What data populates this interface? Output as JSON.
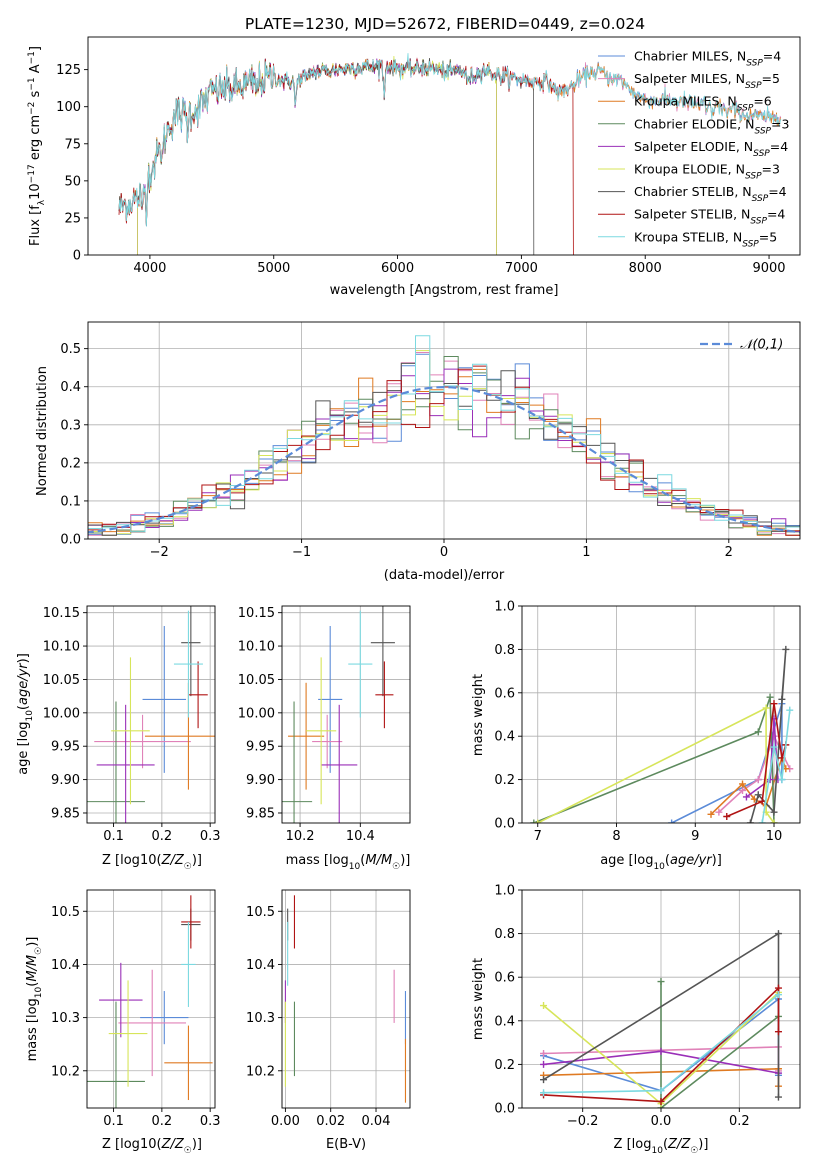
{
  "colors": {
    "Chabrier MILES": "#5b8bd8",
    "Salpeter MILES": "#e082b8",
    "Kroupa MILES": "#df7a22",
    "Chabrier ELODIE": "#5d8a5e",
    "Salpeter ELODIE": "#9a2fb8",
    "Kroupa ELODIE": "#d7e55a",
    "Chabrier STELIB": "#555555",
    "Salpeter STELIB": "#b01414",
    "Kroupa STELIB": "#7cd9e0"
  },
  "chart_data": [
    {
      "id": "spectrum",
      "type": "line",
      "title": "PLATE=1230, MJD=52672, FIBERID=0449, z=0.024",
      "xlabel": "wavelength [Angstrom, rest frame]",
      "ylabel": "Flux [fλ10⁻¹⁷ erg cm⁻² s⁻¹ A⁻¹]",
      "xlim": [
        3500,
        9250
      ],
      "ylim": [
        0,
        147
      ],
      "xticks": [
        4000,
        5000,
        6000,
        7000,
        8000,
        9000
      ],
      "yticks": [
        0,
        25,
        50,
        75,
        100,
        125
      ],
      "legend_position": "upper right",
      "continuum": {
        "x": [
          3750,
          3900,
          4000,
          4100,
          4200,
          4300,
          4400,
          4500,
          4600,
          4700,
          4800,
          4900,
          5000,
          5100,
          5200,
          5300,
          5400,
          5500,
          5600,
          5700,
          5800,
          5900,
          6000,
          6100,
          6200,
          6300,
          6400,
          6500,
          6600,
          6700,
          6800,
          6900,
          7000,
          7100,
          7200,
          7300,
          7400,
          7500,
          7600,
          7700,
          7800,
          7900,
          8000,
          8200,
          8400,
          8600,
          8800,
          9000,
          9100
        ],
        "y": [
          32,
          38,
          55,
          75,
          95,
          95,
          100,
          110,
          112,
          113,
          115,
          118,
          120,
          117,
          118,
          123,
          124,
          125,
          126,
          127,
          127,
          128,
          126,
          125,
          127,
          126,
          123,
          125,
          120,
          125,
          121,
          120,
          118,
          117,
          117,
          110,
          113,
          120,
          126,
          120,
          118,
          110,
          105,
          104,
          102,
          100,
          95,
          92,
          94
        ]
      },
      "absorption_lines": [
        {
          "wl": 3934,
          "depth": 18
        },
        {
          "wl": 3969,
          "depth": 16
        },
        {
          "wl": 4102,
          "depth": 10
        },
        {
          "wl": 4304,
          "depth": 10
        },
        {
          "wl": 4861,
          "depth": 8
        },
        {
          "wl": 5175,
          "depth": 18
        },
        {
          "wl": 5270,
          "depth": 6
        },
        {
          "wl": 5893,
          "depth": 22
        },
        {
          "wl": 6563,
          "depth": 6
        },
        {
          "wl": 7600,
          "depth": 8
        },
        {
          "wl": 8498,
          "depth": 6
        },
        {
          "wl": 8542,
          "depth": 8
        },
        {
          "wl": 8662,
          "depth": 6
        }
      ],
      "series": [
        {
          "name": "Chabrier MILES, N_SSP=4",
          "model": "Chabrier MILES",
          "range": [
            3750,
            9100
          ]
        },
        {
          "name": "Salpeter MILES, N_SSP=5",
          "model": "Salpeter MILES",
          "range": [
            3750,
            9100
          ]
        },
        {
          "name": "Kroupa MILES, N_SSP=6",
          "model": "Kroupa MILES",
          "range": [
            3750,
            9100
          ]
        },
        {
          "name": "Chabrier ELODIE, N_SSP=3",
          "model": "Chabrier ELODIE",
          "range": [
            3900,
            6800
          ]
        },
        {
          "name": "Salpeter ELODIE, N_SSP=4",
          "model": "Salpeter ELODIE",
          "range": [
            3900,
            6800
          ]
        },
        {
          "name": "Kroupa ELODIE, N_SSP=3",
          "model": "Kroupa ELODIE",
          "range": [
            3900,
            6800
          ]
        },
        {
          "name": "Chabrier STELIB, N_SSP=4",
          "model": "Chabrier STELIB",
          "range": [
            3750,
            7100
          ]
        },
        {
          "name": "Salpeter STELIB, N_SSP=4",
          "model": "Salpeter STELIB",
          "range": [
            3750,
            7420
          ]
        },
        {
          "name": "Kroupa STELIB, N_SSP=5",
          "model": "Kroupa STELIB",
          "range": [
            3750,
            9100
          ]
        }
      ]
    },
    {
      "id": "residuals",
      "type": "histogram",
      "xlabel": "(data-model)/error",
      "ylabel": "Normed distribution",
      "xlim": [
        -2.5,
        2.5
      ],
      "ylim": [
        0,
        0.57
      ],
      "xticks": [
        -2,
        -1,
        0,
        1,
        2
      ],
      "yticks": [
        0.0,
        0.1,
        0.2,
        0.3,
        0.4,
        0.5
      ],
      "grid": true,
      "bin_width": 0.1,
      "reference": {
        "name": "𝒩(0,1)",
        "type": "gaussian",
        "mean": 0,
        "sigma": 1
      },
      "legend_position": "upper right"
    },
    {
      "id": "age_vs_Z",
      "type": "errorbar",
      "xlabel": "Z [log10(Z/Z☉)]",
      "ylabel": "age  [log10(age/yr)]",
      "xlim": [
        0.045,
        0.31
      ],
      "ylim": [
        9.835,
        10.16
      ],
      "xticks": [
        0.1,
        0.2,
        0.3
      ],
      "yticks": [
        9.85,
        9.9,
        9.95,
        10.0,
        10.05,
        10.1,
        10.15
      ],
      "grid": true,
      "points": [
        {
          "model": "Chabrier MILES",
          "x": 0.205,
          "xerr": 0.045,
          "y": 10.02,
          "yerr": 0.11
        },
        {
          "model": "Salpeter MILES",
          "x": 0.16,
          "xerr": 0.1,
          "y": 9.957,
          "yerr": 0.04
        },
        {
          "model": "Kroupa MILES",
          "x": 0.255,
          "xerr": 0.09,
          "y": 9.965,
          "yerr": 0.08
        },
        {
          "model": "Chabrier ELODIE",
          "x": 0.105,
          "xerr": 0.06,
          "y": 9.867,
          "yerr": 0.15
        },
        {
          "model": "Salpeter ELODIE",
          "x": 0.125,
          "xerr": 0.06,
          "y": 9.922,
          "yerr": 0.09
        },
        {
          "model": "Kroupa ELODIE",
          "x": 0.135,
          "xerr": 0.04,
          "y": 9.973,
          "yerr": 0.11
        },
        {
          "model": "Chabrier STELIB",
          "x": 0.26,
          "xerr": 0.02,
          "y": 10.105,
          "yerr": 0.08
        },
        {
          "model": "Salpeter STELIB",
          "x": 0.275,
          "xerr": 0.02,
          "y": 10.027,
          "yerr": 0.05
        },
        {
          "model": "Kroupa STELIB",
          "x": 0.255,
          "xerr": 0.03,
          "y": 10.073,
          "yerr": 0.08
        }
      ]
    },
    {
      "id": "age_vs_mass",
      "type": "errorbar",
      "xlabel": "mass [log10(M/M☉)]",
      "ylabel": "",
      "xlim": [
        10.14,
        10.565
      ],
      "ylim": [
        9.835,
        10.16
      ],
      "xticks": [
        10.2,
        10.4
      ],
      "yticks": [
        9.85,
        9.9,
        9.95,
        10.0,
        10.05,
        10.1,
        10.15
      ],
      "grid": true,
      "points": [
        {
          "model": "Chabrier MILES",
          "x": 10.3,
          "xerr": 0.04,
          "y": 10.02,
          "yerr": 0.11
        },
        {
          "model": "Salpeter MILES",
          "x": 10.29,
          "xerr": 0.05,
          "y": 9.957,
          "yerr": 0.04
        },
        {
          "model": "Kroupa MILES",
          "x": 10.22,
          "xerr": 0.06,
          "y": 9.965,
          "yerr": 0.08
        },
        {
          "model": "Chabrier ELODIE",
          "x": 10.18,
          "xerr": 0.06,
          "y": 9.867,
          "yerr": 0.15
        },
        {
          "model": "Salpeter ELODIE",
          "x": 10.33,
          "xerr": 0.06,
          "y": 9.922,
          "yerr": 0.09
        },
        {
          "model": "Kroupa ELODIE",
          "x": 10.27,
          "xerr": 0.05,
          "y": 9.973,
          "yerr": 0.11
        },
        {
          "model": "Chabrier STELIB",
          "x": 10.475,
          "xerr": 0.04,
          "y": 10.105,
          "yerr": 0.08
        },
        {
          "model": "Salpeter STELIB",
          "x": 10.48,
          "xerr": 0.03,
          "y": 10.027,
          "yerr": 0.05
        },
        {
          "model": "Kroupa STELIB",
          "x": 10.4,
          "xerr": 0.04,
          "y": 10.073,
          "yerr": 0.08
        }
      ]
    },
    {
      "id": "massweight_vs_age",
      "type": "line",
      "xlabel": "age  [log10(age/yr)]",
      "ylabel": "mass weight",
      "xlim": [
        6.8,
        10.33
      ],
      "ylim": [
        0,
        1.0
      ],
      "xticks": [
        7,
        8,
        9,
        10
      ],
      "yticks": [
        0.0,
        0.2,
        0.4,
        0.6,
        0.8,
        1.0
      ],
      "grid": true,
      "series": [
        {
          "model": "Chabrier MILES",
          "points": [
            [
              8.7,
              0.0
            ],
            [
              9.8,
              0.2
            ],
            [
              10.1,
              0.55
            ],
            [
              10.1,
              0.2
            ]
          ]
        },
        {
          "model": "Salpeter MILES",
          "points": [
            [
              9.3,
              0.05
            ],
            [
              9.6,
              0.15
            ],
            [
              9.8,
              0.2
            ],
            [
              10.0,
              0.4
            ],
            [
              10.2,
              0.25
            ]
          ]
        },
        {
          "model": "Kroupa MILES",
          "points": [
            [
              9.2,
              0.04
            ],
            [
              9.6,
              0.18
            ],
            [
              9.75,
              0.11
            ],
            [
              9.9,
              0.08
            ],
            [
              10.1,
              0.3
            ],
            [
              10.15,
              0.25
            ]
          ]
        },
        {
          "model": "Chabrier ELODIE",
          "points": [
            [
              6.95,
              0.0
            ],
            [
              9.8,
              0.42
            ],
            [
              9.95,
              0.58
            ],
            [
              10.0,
              0.0
            ]
          ]
        },
        {
          "model": "Salpeter ELODIE",
          "points": [
            [
              9.65,
              0.12
            ],
            [
              9.95,
              0.2
            ],
            [
              10.0,
              0.48
            ],
            [
              10.05,
              0.2
            ]
          ]
        },
        {
          "model": "Kroupa ELODIE",
          "points": [
            [
              7.0,
              0.0
            ],
            [
              9.9,
              0.53
            ],
            [
              9.9,
              0.05
            ],
            [
              10.0,
              0.0
            ]
          ]
        },
        {
          "model": "Chabrier STELIB",
          "points": [
            [
              9.7,
              0.0
            ],
            [
              9.8,
              0.13
            ],
            [
              10.0,
              0.05
            ],
            [
              10.15,
              0.8
            ],
            [
              10.1,
              0.57
            ]
          ]
        },
        {
          "model": "Salpeter STELIB",
          "points": [
            [
              9.4,
              0.03
            ],
            [
              9.85,
              0.1
            ],
            [
              10.0,
              0.55
            ],
            [
              10.1,
              0.3
            ],
            [
              10.15,
              0.36
            ]
          ]
        },
        {
          "model": "Kroupa STELIB",
          "points": [
            [
              9.85,
              0.0
            ],
            [
              10.0,
              0.35
            ],
            [
              10.1,
              0.2
            ],
            [
              10.2,
              0.52
            ]
          ]
        }
      ]
    },
    {
      "id": "mass_vs_Z",
      "type": "errorbar",
      "xlabel": "Z [log10(Z/Z☉)]",
      "ylabel": "mass [log10(M/M☉)]",
      "xlim": [
        0.045,
        0.31
      ],
      "ylim": [
        10.13,
        10.54
      ],
      "xticks": [
        0.1,
        0.2,
        0.3
      ],
      "yticks": [
        10.2,
        10.3,
        10.4,
        10.5
      ],
      "grid": true,
      "points": [
        {
          "model": "Chabrier MILES",
          "x": 0.205,
          "xerr": 0.05,
          "y": 10.3,
          "yerr": 0.05
        },
        {
          "model": "Salpeter MILES",
          "x": 0.18,
          "xerr": 0.07,
          "y": 10.29,
          "yerr": 0.1
        },
        {
          "model": "Kroupa MILES",
          "x": 0.255,
          "xerr": 0.05,
          "y": 10.215,
          "yerr": 0.07
        },
        {
          "model": "Chabrier ELODIE",
          "x": 0.105,
          "xerr": 0.06,
          "y": 10.18,
          "yerr": 0.15
        },
        {
          "model": "Salpeter ELODIE",
          "x": 0.115,
          "xerr": 0.045,
          "y": 10.333,
          "yerr": 0.07
        },
        {
          "model": "Kroupa ELODIE",
          "x": 0.13,
          "xerr": 0.04,
          "y": 10.27,
          "yerr": 0.1
        },
        {
          "model": "Chabrier STELIB",
          "x": 0.26,
          "xerr": 0.02,
          "y": 10.475,
          "yerr": 0.03
        },
        {
          "model": "Salpeter STELIB",
          "x": 0.26,
          "xerr": 0.02,
          "y": 10.48,
          "yerr": 0.05
        },
        {
          "model": "Kroupa STELIB",
          "x": 0.255,
          "xerr": 0.015,
          "y": 10.4,
          "yerr": 0.08
        }
      ]
    },
    {
      "id": "mass_vs_ebv",
      "type": "errorbar",
      "xlabel": "E(B-V)",
      "ylabel": "",
      "xlim": [
        -0.0015,
        0.055
      ],
      "ylim": [
        10.13,
        10.54
      ],
      "xticks": [
        0.0,
        0.02,
        0.04
      ],
      "yticks": [
        10.2,
        10.3,
        10.4,
        10.5
      ],
      "grid": true,
      "points": [
        {
          "model": "Chabrier MILES",
          "x": 0.053,
          "xerr": 0,
          "y": 10.3,
          "yerr": 0.05
        },
        {
          "model": "Salpeter MILES",
          "x": 0.048,
          "xerr": 0,
          "y": 10.34,
          "yerr": 0.05
        },
        {
          "model": "Kroupa MILES",
          "x": 0.053,
          "xerr": 0,
          "y": 10.2,
          "yerr": 0.06
        },
        {
          "model": "Chabrier ELODIE",
          "x": 0.004,
          "xerr": 0,
          "y": 10.26,
          "yerr": 0.07
        },
        {
          "model": "Salpeter ELODIE",
          "x": 0.0,
          "xerr": 0,
          "y": 10.33,
          "yerr": 0.04
        },
        {
          "model": "Kroupa ELODIE",
          "x": 0.0,
          "xerr": 0,
          "y": 10.25,
          "yerr": 0.08
        },
        {
          "model": "Chabrier STELIB",
          "x": 0.001,
          "xerr": 0,
          "y": 10.475,
          "yerr": 0.03
        },
        {
          "model": "Salpeter STELIB",
          "x": 0.004,
          "xerr": 0,
          "y": 10.48,
          "yerr": 0.05
        },
        {
          "model": "Kroupa STELIB",
          "x": 0.001,
          "xerr": 0,
          "y": 10.42,
          "yerr": 0.06
        }
      ]
    },
    {
      "id": "massweight_vs_Z",
      "type": "line",
      "xlabel": "Z [log10(Z/Z☉)]",
      "ylabel": "mass weight",
      "xlim": [
        -0.355,
        0.355
      ],
      "ylim": [
        0,
        1.0
      ],
      "xticks": [
        -0.2,
        0.0,
        0.2
      ],
      "yticks": [
        0.0,
        0.2,
        0.4,
        0.6,
        0.8,
        1.0
      ],
      "grid": true,
      "series": [
        {
          "model": "Chabrier MILES",
          "points": [
            [
              -0.3,
              0.24
            ],
            [
              0.0,
              0.08
            ],
            [
              0.3,
              0.5
            ],
            [
              0.3,
              0.15
            ]
          ]
        },
        {
          "model": "Salpeter MILES",
          "points": [
            [
              -0.3,
              0.25
            ],
            [
              0.3,
              0.28
            ],
            [
              0.3,
              0.17
            ]
          ]
        },
        {
          "model": "Kroupa MILES",
          "points": [
            [
              -0.3,
              0.15
            ],
            [
              0.3,
              0.18
            ],
            [
              0.3,
              0.1
            ]
          ]
        },
        {
          "model": "Chabrier ELODIE",
          "points": [
            [
              0.0,
              0.58
            ],
            [
              0.0,
              0.0
            ],
            [
              0.3,
              0.42
            ]
          ]
        },
        {
          "model": "Salpeter ELODIE",
          "points": [
            [
              -0.3,
              0.2
            ],
            [
              0.0,
              0.26
            ],
            [
              0.3,
              0.16
            ]
          ]
        },
        {
          "model": "Kroupa ELODIE",
          "points": [
            [
              -0.3,
              0.47
            ],
            [
              0.0,
              0.02
            ],
            [
              0.3,
              0.53
            ]
          ]
        },
        {
          "model": "Chabrier STELIB",
          "points": [
            [
              -0.3,
              0.13
            ],
            [
              0.3,
              0.8
            ],
            [
              0.3,
              0.05
            ]
          ]
        },
        {
          "model": "Salpeter STELIB",
          "points": [
            [
              -0.3,
              0.06
            ],
            [
              0.0,
              0.03
            ],
            [
              0.3,
              0.55
            ],
            [
              0.3,
              0.35
            ]
          ]
        },
        {
          "model": "Kroupa STELIB",
          "points": [
            [
              -0.3,
              0.07
            ],
            [
              0.0,
              0.08
            ],
            [
              0.3,
              0.52
            ]
          ]
        }
      ]
    }
  ]
}
